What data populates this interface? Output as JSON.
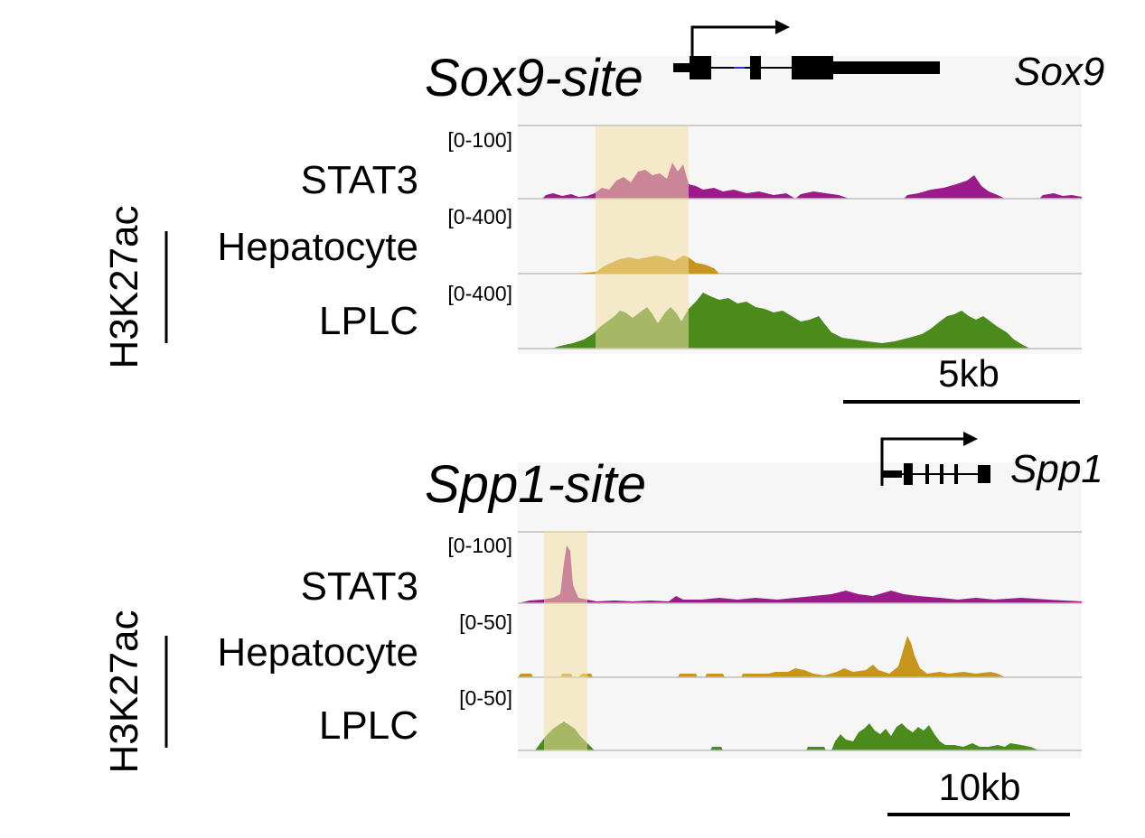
{
  "colors": {
    "stat3": "#9c1a8c",
    "hepatocyte": "#c7951c",
    "lplc": "#4b8b1c",
    "highlight": "#f3dfa2",
    "panel_bg": "#f6f6f6",
    "separator": "#bdbdbd",
    "gene": "#000000"
  },
  "panels": [
    {
      "site_label": "Sox9-site",
      "gene_label": "Sox9",
      "side_label": "H3K27ac",
      "scale_label": "5kb",
      "tracks": [
        {
          "label": "STAT3",
          "range": "[0-100]"
        },
        {
          "label": "Hepatocyte",
          "range": "[0-400]"
        },
        {
          "label": "LPLC",
          "range": "[0-400]"
        }
      ]
    },
    {
      "site_label": "Spp1-site",
      "gene_label": "Spp1",
      "side_label": "H3K27ac",
      "scale_label": "10kb",
      "tracks": [
        {
          "label": "STAT3",
          "range": "[0-100]"
        },
        {
          "label": "Hepatocyte",
          "range": "[0-50]"
        },
        {
          "label": "LPLC",
          "range": "[0-50]"
        }
      ]
    }
  ]
}
